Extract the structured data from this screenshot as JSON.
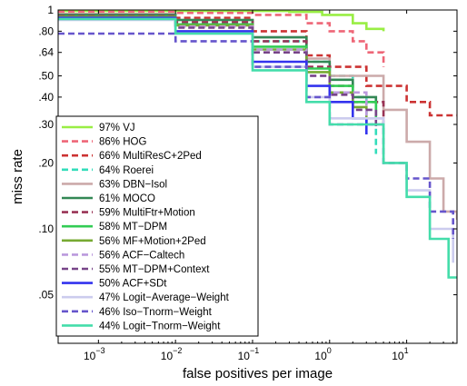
{
  "chart_data": {
    "type": "line",
    "title": "",
    "xlabel": "false positives per image",
    "ylabel": "miss rate",
    "x_scale": "log",
    "y_scale": "log",
    "xlim": [
      0.0003,
      45
    ],
    "ylim": [
      0.03,
      1
    ],
    "x_ticks": [
      {
        "value": 0.001,
        "base": "10",
        "exp": "−3"
      },
      {
        "value": 0.01,
        "base": "10",
        "exp": "−2"
      },
      {
        "value": 0.1,
        "base": "10",
        "exp": "−1"
      },
      {
        "value": 1,
        "base": "10",
        "exp": "0"
      },
      {
        "value": 10,
        "base": "10",
        "exp": "1"
      }
    ],
    "y_ticks": [
      {
        "value": 1,
        "label": "1"
      },
      {
        "value": 0.8,
        "label": ".80"
      },
      {
        "value": 0.64,
        "label": ".64"
      },
      {
        "value": 0.5,
        "label": ".50"
      },
      {
        "value": 0.4,
        "label": ".40"
      },
      {
        "value": 0.3,
        "label": ".30"
      },
      {
        "value": 0.2,
        "label": ".20"
      },
      {
        "value": 0.1,
        "label": ".10"
      },
      {
        "value": 0.05,
        "label": ".05"
      }
    ],
    "grid": false,
    "legend_position": "bottom-left",
    "series": [
      {
        "name": "97% VJ",
        "color": "#99ee44",
        "dash": "solid",
        "points": [
          [
            0.0003,
            0.99
          ],
          [
            0.01,
            0.99
          ],
          [
            0.1,
            0.99
          ],
          [
            0.3,
            0.98
          ],
          [
            0.8,
            0.95
          ],
          [
            2,
            0.87
          ],
          [
            3,
            0.82
          ],
          [
            5,
            0.8
          ]
        ]
      },
      {
        "name": "86% HOG",
        "color": "#ee6677",
        "dash": "dashed",
        "points": [
          [
            0.0003,
            0.98
          ],
          [
            0.01,
            0.97
          ],
          [
            0.1,
            0.95
          ],
          [
            0.5,
            0.87
          ],
          [
            1,
            0.8
          ],
          [
            2,
            0.72
          ],
          [
            3,
            0.64
          ],
          [
            5,
            0.55
          ]
        ]
      },
      {
        "name": "66% MultiResC+2Ped",
        "color": "#cc3333",
        "dash": "dashed",
        "points": [
          [
            0.0003,
            0.96
          ],
          [
            0.01,
            0.92
          ],
          [
            0.1,
            0.8
          ],
          [
            0.5,
            0.62
          ],
          [
            1,
            0.55
          ],
          [
            3,
            0.45
          ],
          [
            10,
            0.38
          ],
          [
            20,
            0.33
          ],
          [
            45,
            0.33
          ]
        ]
      },
      {
        "name": "64% Roerei",
        "color": "#33ddbb",
        "dash": "dashed",
        "points": [
          [
            0.0003,
            0.93
          ],
          [
            0.01,
            0.85
          ],
          [
            0.1,
            0.72
          ],
          [
            0.5,
            0.58
          ],
          [
            1,
            0.5
          ],
          [
            2,
            0.4
          ],
          [
            3,
            0.3
          ],
          [
            4,
            0.22
          ]
        ]
      },
      {
        "name": "63% DBN−Isol",
        "color": "#ccaaaa",
        "dash": "solid",
        "points": [
          [
            0.0003,
            0.96
          ],
          [
            0.01,
            0.9
          ],
          [
            0.1,
            0.75
          ],
          [
            0.5,
            0.6
          ],
          [
            1,
            0.5
          ],
          [
            5,
            0.35
          ],
          [
            10,
            0.25
          ],
          [
            20,
            0.17
          ],
          [
            30,
            0.12
          ],
          [
            45,
            0.11
          ]
        ]
      },
      {
        "name": "61% MOCO",
        "color": "#338855",
        "dash": "solid",
        "points": [
          [
            0.0003,
            0.95
          ],
          [
            0.01,
            0.9
          ],
          [
            0.1,
            0.75
          ],
          [
            0.5,
            0.58
          ],
          [
            1,
            0.48
          ],
          [
            2,
            0.4
          ],
          [
            4,
            0.33
          ]
        ]
      },
      {
        "name": "59% MultiFtr+Motion",
        "color": "#993355",
        "dash": "dashed",
        "points": [
          [
            0.0003,
            0.94
          ],
          [
            0.01,
            0.88
          ],
          [
            0.1,
            0.72
          ],
          [
            0.5,
            0.55
          ],
          [
            1,
            0.45
          ],
          [
            2,
            0.38
          ],
          [
            5,
            0.3
          ]
        ]
      },
      {
        "name": "58% MT−DPM",
        "color": "#33cc55",
        "dash": "solid",
        "points": [
          [
            0.0003,
            0.93
          ],
          [
            0.01,
            0.86
          ],
          [
            0.1,
            0.68
          ],
          [
            0.5,
            0.54
          ],
          [
            1,
            0.45
          ],
          [
            2,
            0.38
          ],
          [
            4,
            0.32
          ]
        ]
      },
      {
        "name": "56% MF+Motion+2Ped",
        "color": "#77aa33",
        "dash": "solid",
        "points": [
          [
            0.0003,
            0.93
          ],
          [
            0.01,
            0.85
          ],
          [
            0.1,
            0.66
          ],
          [
            0.5,
            0.52
          ],
          [
            1,
            0.42
          ],
          [
            2,
            0.36
          ],
          [
            3,
            0.3
          ]
        ]
      },
      {
        "name": "56% ACF−Caltech",
        "color": "#bb99dd",
        "dash": "dashed",
        "points": [
          [
            0.0003,
            0.92
          ],
          [
            0.01,
            0.84
          ],
          [
            0.1,
            0.66
          ],
          [
            0.5,
            0.5
          ],
          [
            1,
            0.42
          ],
          [
            3,
            0.32
          ],
          [
            5,
            0.28
          ]
        ]
      },
      {
        "name": "55% MT−DPM+Context",
        "color": "#774488",
        "dash": "dashed",
        "points": [
          [
            0.0003,
            0.92
          ],
          [
            0.01,
            0.83
          ],
          [
            0.1,
            0.64
          ],
          [
            0.5,
            0.5
          ],
          [
            1,
            0.41
          ],
          [
            2,
            0.35
          ],
          [
            4,
            0.29
          ]
        ]
      },
      {
        "name": "50% ACF+SDt",
        "color": "#3333ee",
        "dash": "solid",
        "points": [
          [
            0.0003,
            0.92
          ],
          [
            0.01,
            0.8
          ],
          [
            0.1,
            0.58
          ],
          [
            0.5,
            0.45
          ],
          [
            1,
            0.38
          ],
          [
            2,
            0.32
          ],
          [
            3,
            0.27
          ]
        ]
      },
      {
        "name": "47% Logit−Average−Weight",
        "color": "#ccccee",
        "dash": "solid",
        "points": [
          [
            0.0003,
            0.9
          ],
          [
            0.01,
            0.78
          ],
          [
            0.1,
            0.55
          ],
          [
            0.5,
            0.4
          ],
          [
            1,
            0.32
          ],
          [
            5,
            0.2
          ],
          [
            10,
            0.15
          ],
          [
            20,
            0.1
          ],
          [
            40,
            0.07
          ]
        ]
      },
      {
        "name": "46% Iso−Tnorm−Weight",
        "color": "#6655cc",
        "dash": "dashed",
        "points": [
          [
            0.0003,
            0.78
          ],
          [
            0.01,
            0.72
          ],
          [
            0.1,
            0.55
          ],
          [
            0.5,
            0.4
          ],
          [
            1,
            0.3
          ],
          [
            5,
            0.2
          ],
          [
            10,
            0.17
          ],
          [
            20,
            0.12
          ],
          [
            40,
            0.09
          ]
        ]
      },
      {
        "name": "44% Logit−Tnorm−Weight",
        "color": "#44ddaa",
        "dash": "solid",
        "points": [
          [
            0.0003,
            0.91
          ],
          [
            0.01,
            0.78
          ],
          [
            0.1,
            0.53
          ],
          [
            0.5,
            0.38
          ],
          [
            1,
            0.3
          ],
          [
            5,
            0.2
          ],
          [
            10,
            0.14
          ],
          [
            20,
            0.09
          ],
          [
            35,
            0.06
          ],
          [
            45,
            0.06
          ]
        ]
      }
    ]
  }
}
